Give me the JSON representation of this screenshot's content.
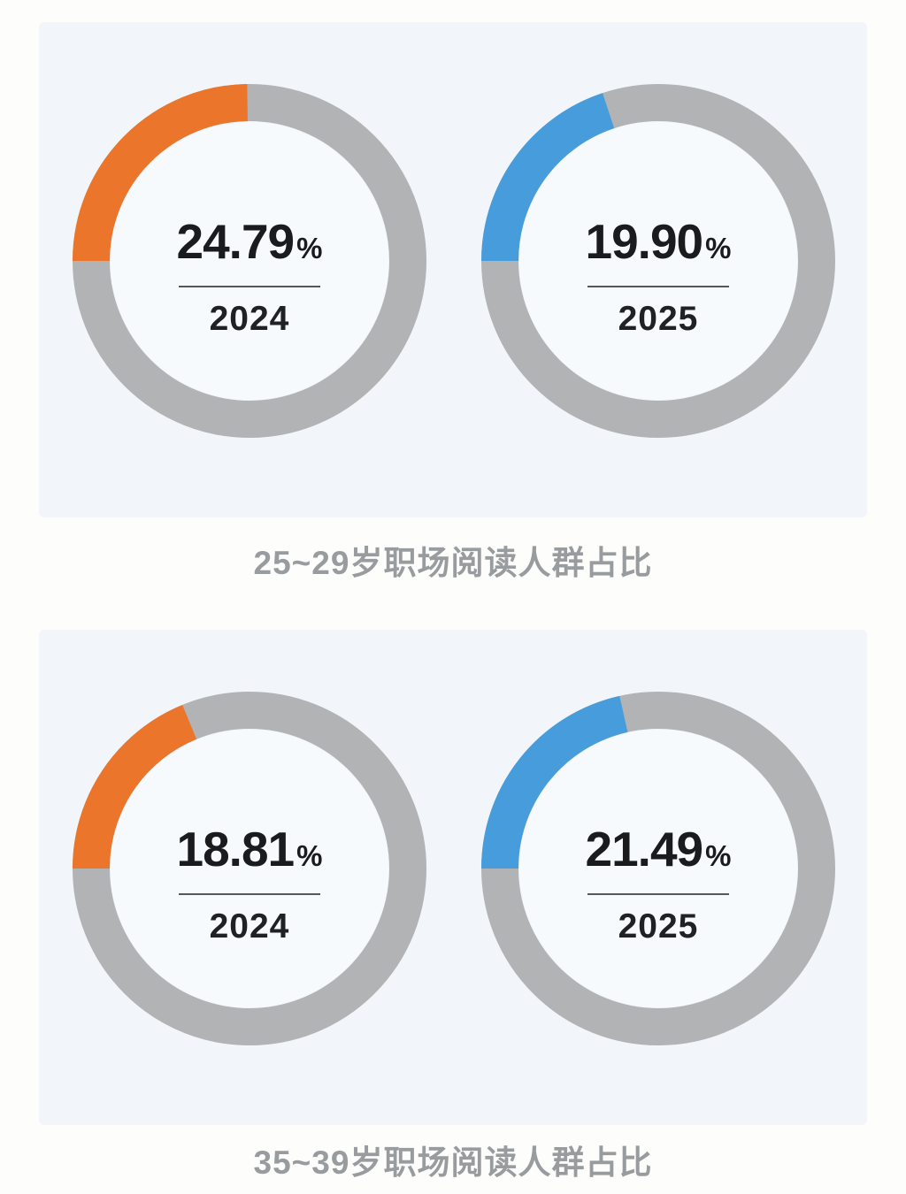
{
  "colors": {
    "accent_2024_orange": "#EB752A",
    "accent_2025_blue": "#479DDB",
    "ring_gray": "#B2B3B5",
    "inner_fill": "#F7FAFD",
    "panel_bg": "#F2F6FA",
    "caption_gray": "#999C9F",
    "value_text": "#1A1B1D",
    "divider": "#55575B"
  },
  "sections": [
    {
      "caption": "25~29岁职场阅读人群占比",
      "charts": [
        {
          "value": "24.79",
          "unit": "%",
          "year": "2024",
          "percent": 24.79,
          "color": "#EB752A"
        },
        {
          "value": "19.90",
          "unit": "%",
          "year": "2025",
          "percent": 19.9,
          "color": "#479DDB"
        }
      ]
    },
    {
      "caption": "35~39岁职场阅读人群占比",
      "charts": [
        {
          "value": "18.81",
          "unit": "%",
          "year": "2024",
          "percent": 18.81,
          "color": "#EB752A"
        },
        {
          "value": "21.49",
          "unit": "%",
          "year": "2025",
          "percent": 21.49,
          "color": "#479DDB"
        }
      ]
    }
  ],
  "chart_data": [
    {
      "type": "pie",
      "subtype": "donut-gauge",
      "title": "25~29岁职场阅读人群占比",
      "legend_position": "none",
      "donuts": [
        {
          "label": "2024",
          "value_pct": 24.79,
          "remainder_pct": 75.21,
          "center_text": "24.79%",
          "arc_color": "#EB752A",
          "rest_color": "#B2B3B5"
        },
        {
          "label": "2025",
          "value_pct": 19.9,
          "remainder_pct": 80.1,
          "center_text": "19.90%",
          "arc_color": "#479DDB",
          "rest_color": "#B2B3B5"
        }
      ],
      "layout_hint": "arc ends at 9 o'clock, fills counterclockwise; flat butt caps; ring thickness ~10.5% of diameter"
    },
    {
      "type": "pie",
      "subtype": "donut-gauge",
      "title": "35~39岁职场阅读人群占比",
      "legend_position": "none",
      "donuts": [
        {
          "label": "2024",
          "value_pct": 18.81,
          "remainder_pct": 81.19,
          "center_text": "18.81%",
          "arc_color": "#EB752A",
          "rest_color": "#B2B3B5"
        },
        {
          "label": "2025",
          "value_pct": 21.49,
          "remainder_pct": 78.51,
          "center_text": "21.49%",
          "arc_color": "#479DDB",
          "rest_color": "#B2B3B5"
        }
      ],
      "layout_hint": "arc ends at 9 o'clock, fills counterclockwise; flat butt caps; ring thickness ~10.5% of diameter"
    }
  ]
}
